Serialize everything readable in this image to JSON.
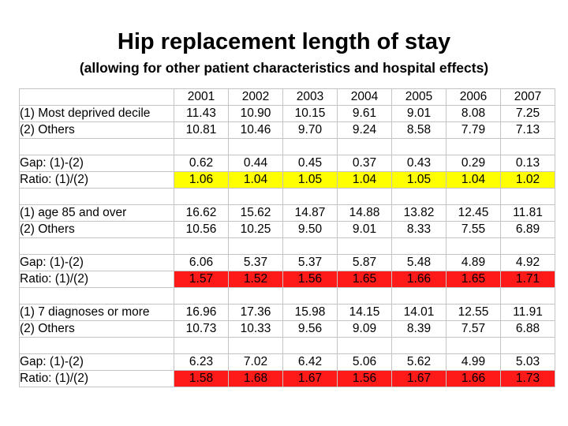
{
  "title": "Hip replacement length of stay",
  "subtitle": "(allowing for other patient characteristics and hospital effects)",
  "table": {
    "years": [
      "2001",
      "2002",
      "2003",
      "2004",
      "2005",
      "2006",
      "2007"
    ],
    "rows": [
      {
        "label": "(1) Most deprived decile",
        "values": [
          "11.43",
          "10.90",
          "10.15",
          "9.61",
          "9.01",
          "8.08",
          "7.25"
        ]
      },
      {
        "label": "(2) Others",
        "values": [
          "10.81",
          "10.46",
          "9.70",
          "9.24",
          "8.58",
          "7.79",
          "7.13"
        ]
      },
      {
        "label": "",
        "values": [
          "",
          "",
          "",
          "",
          "",
          "",
          ""
        ]
      },
      {
        "label": "Gap: (1)-(2)",
        "values": [
          "0.62",
          "0.44",
          "0.45",
          "0.37",
          "0.43",
          "0.29",
          "0.13"
        ]
      },
      {
        "label": "Ratio: (1)/(2)",
        "highlight": "#ffff00",
        "values": [
          "1.06",
          "1.04",
          "1.05",
          "1.04",
          "1.05",
          "1.04",
          "1.02"
        ]
      },
      {
        "label": "",
        "values": [
          "",
          "",
          "",
          "",
          "",
          "",
          ""
        ]
      },
      {
        "label": "(1) age 85 and over",
        "values": [
          "16.62",
          "15.62",
          "14.87",
          "14.88",
          "13.82",
          "12.45",
          "11.81"
        ]
      },
      {
        "label": "(2) Others",
        "values": [
          "10.56",
          "10.25",
          "9.50",
          "9.01",
          "8.33",
          "7.55",
          "6.89"
        ]
      },
      {
        "label": "",
        "values": [
          "",
          "",
          "",
          "",
          "",
          "",
          ""
        ]
      },
      {
        "label": "Gap: (1)-(2)",
        "values": [
          "6.06",
          "5.37",
          "5.37",
          "5.87",
          "5.48",
          "4.89",
          "4.92"
        ]
      },
      {
        "label": "Ratio: (1)/(2)",
        "highlight": "#ff1a1a",
        "values": [
          "1.57",
          "1.52",
          "1.56",
          "1.65",
          "1.66",
          "1.65",
          "1.71"
        ]
      },
      {
        "label": "",
        "values": [
          "",
          "",
          "",
          "",
          "",
          "",
          ""
        ]
      },
      {
        "label": "(1) 7 diagnoses or more",
        "values": [
          "16.96",
          "17.36",
          "15.98",
          "14.15",
          "14.01",
          "12.55",
          "11.91"
        ]
      },
      {
        "label": "(2) Others",
        "values": [
          "10.73",
          "10.33",
          "9.56",
          "9.09",
          "8.39",
          "7.57",
          "6.88"
        ]
      },
      {
        "label": "",
        "values": [
          "",
          "",
          "",
          "",
          "",
          "",
          ""
        ]
      },
      {
        "label": "Gap: (1)-(2)",
        "values": [
          "6.23",
          "7.02",
          "6.42",
          "5.06",
          "5.62",
          "4.99",
          "5.03"
        ]
      },
      {
        "label": "Ratio: (1)/(2)",
        "highlight": "#ff1a1a",
        "values": [
          "1.58",
          "1.68",
          "1.67",
          "1.56",
          "1.67",
          "1.66",
          "1.73"
        ]
      }
    ]
  }
}
